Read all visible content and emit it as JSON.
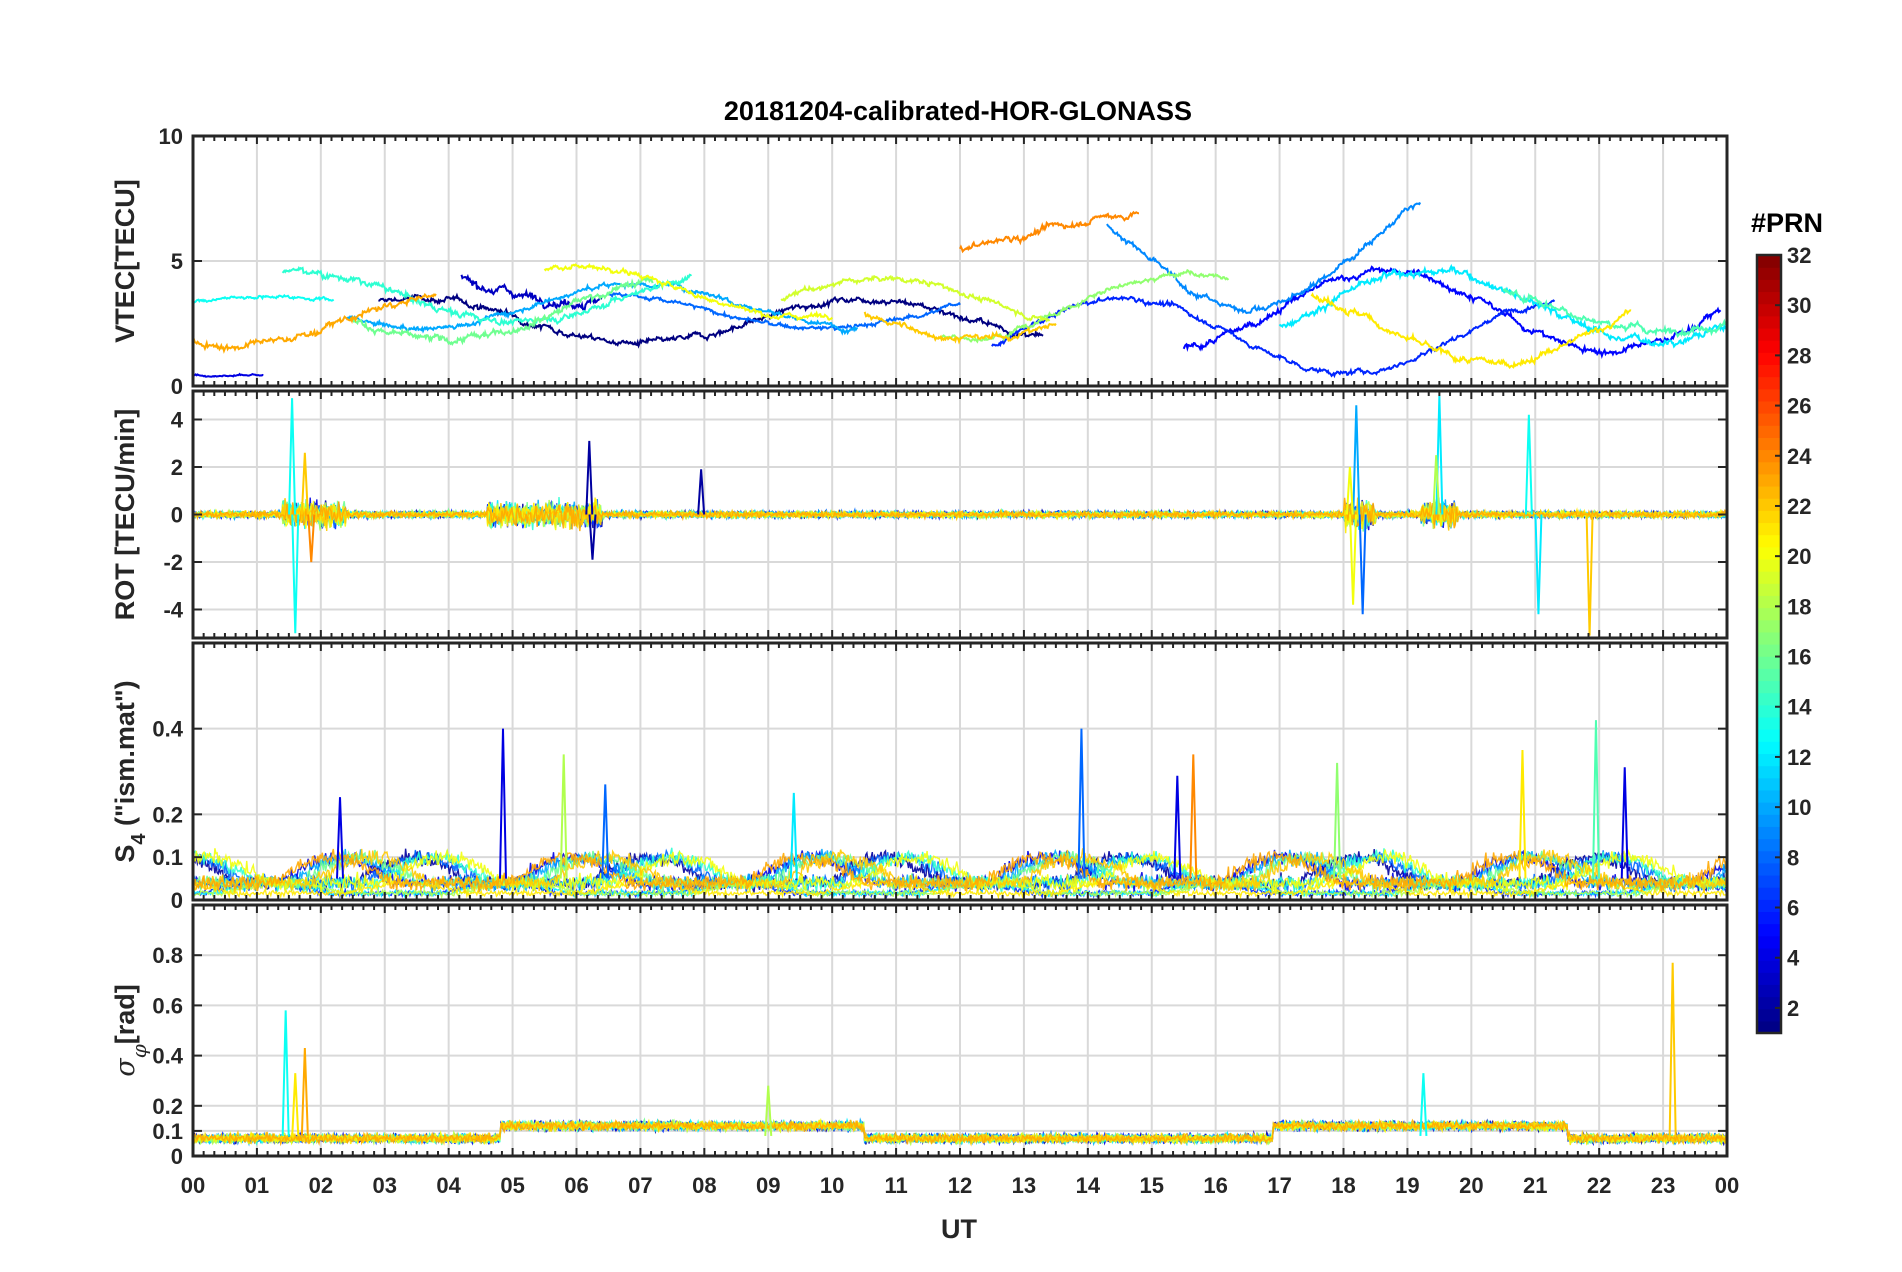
{
  "chart_data": {
    "title": "20181204-calibrated-HOR-GLONASS",
    "xlabel": "UT",
    "x_range": [
      0,
      24
    ],
    "x_tick_labels": [
      "00",
      "01",
      "02",
      "03",
      "04",
      "05",
      "06",
      "07",
      "08",
      "09",
      "10",
      "11",
      "12",
      "13",
      "14",
      "15",
      "16",
      "17",
      "18",
      "19",
      "20",
      "21",
      "22",
      "23",
      "00"
    ],
    "colorbar": {
      "title": "#PRN",
      "range": [
        1,
        32
      ],
      "tick_labels": [
        "2",
        "4",
        "6",
        "8",
        "10",
        "12",
        "14",
        "16",
        "18",
        "20",
        "22",
        "24",
        "26",
        "28",
        "30",
        "32"
      ],
      "colormap": "jet"
    },
    "panels": [
      {
        "id": "vtec",
        "type": "line",
        "ylabel": "VTEC[TECU]",
        "ylim": [
          0,
          10
        ],
        "y_ticks": [
          0,
          5,
          10
        ],
        "y_tick_labels": [
          "0",
          "5",
          "10"
        ],
        "series": [
          {
            "prn": 1,
            "start": 2.9,
            "end": 13.3,
            "base": 2.6,
            "amp": 0.9,
            "noise": 0.35
          },
          {
            "prn": 3,
            "start": 4.2,
            "end": 6.4,
            "base": 4.2,
            "amp": 0.8,
            "noise": 0.5
          },
          {
            "prn": 4,
            "start": 0.0,
            "end": 1.1,
            "base": 0.6,
            "amp": 0.2,
            "noise": 0.12
          },
          {
            "prn": 5,
            "start": 15.5,
            "end": 23.9,
            "base": 3.0,
            "amp": 1.6,
            "noise": 0.4
          },
          {
            "prn": 6,
            "start": 12.5,
            "end": 21.3,
            "base": 2.0,
            "amp": 1.5,
            "noise": 0.3
          },
          {
            "prn": 8,
            "start": 6.5,
            "end": 12.0,
            "base": 3.0,
            "amp": 0.7,
            "noise": 0.25
          },
          {
            "prn": 9,
            "start": 14.3,
            "end": 19.2,
            "base": 5.5,
            "amp": 2.4,
            "noise": 0.35
          },
          {
            "prn": 10,
            "start": 2.4,
            "end": 10.4,
            "base": 3.2,
            "amp": 0.9,
            "noise": 0.3
          },
          {
            "prn": 12,
            "start": 17.0,
            "end": 24.0,
            "base": 3.2,
            "amp": 1.4,
            "noise": 0.45
          },
          {
            "prn": 13,
            "start": 0.0,
            "end": 2.2,
            "base": 3.2,
            "amp": 0.4,
            "noise": 0.2
          },
          {
            "prn": 14,
            "start": 1.4,
            "end": 7.8,
            "base": 3.6,
            "amp": 1.0,
            "noise": 0.4
          },
          {
            "prn": 15,
            "start": 20.5,
            "end": 24.0,
            "base": 3.2,
            "amp": 1.0,
            "noise": 0.4
          },
          {
            "prn": 16,
            "start": 2.5,
            "end": 7.2,
            "base": 3.0,
            "amp": 1.2,
            "noise": 0.4
          },
          {
            "prn": 17,
            "start": 11.7,
            "end": 16.2,
            "base": 3.2,
            "amp": 1.3,
            "noise": 0.3
          },
          {
            "prn": 19,
            "start": 9.2,
            "end": 13.4,
            "base": 3.3,
            "amp": 1.0,
            "noise": 0.3
          },
          {
            "prn": 20,
            "start": 5.5,
            "end": 10.0,
            "base": 3.8,
            "amp": 1.0,
            "noise": 0.3
          },
          {
            "prn": 21,
            "start": 17.5,
            "end": 22.5,
            "base": 2.4,
            "amp": 1.5,
            "noise": 0.4
          },
          {
            "prn": 22,
            "start": 10.5,
            "end": 13.5,
            "base": 2.9,
            "amp": 1.0,
            "noise": 0.35
          },
          {
            "prn": 23,
            "start": 0.0,
            "end": 3.8,
            "base": 2.6,
            "amp": 1.0,
            "noise": 0.4
          },
          {
            "prn": 24,
            "start": 12.0,
            "end": 14.8,
            "base": 6.2,
            "amp": 0.7,
            "noise": 0.4
          }
        ]
      },
      {
        "id": "rot",
        "type": "line",
        "ylabel": "ROT [TECU/min]",
        "ylim": [
          -5.2,
          5.2
        ],
        "y_ticks": [
          -4,
          -2,
          0,
          2,
          4
        ],
        "y_tick_labels": [
          "-4",
          "-2",
          "0",
          "2",
          "4"
        ],
        "spikes": [
          {
            "t": 1.55,
            "v": 4.9,
            "prn": 13
          },
          {
            "t": 1.6,
            "v": -5.0,
            "prn": 13
          },
          {
            "t": 1.75,
            "v": 2.6,
            "prn": 22
          },
          {
            "t": 1.85,
            "v": -2.0,
            "prn": 24
          },
          {
            "t": 6.2,
            "v": 3.1,
            "prn": 2
          },
          {
            "t": 6.25,
            "v": -1.9,
            "prn": 2
          },
          {
            "t": 7.95,
            "v": 1.9,
            "prn": 2
          },
          {
            "t": 18.2,
            "v": 4.6,
            "prn": 10
          },
          {
            "t": 18.3,
            "v": -4.2,
            "prn": 8
          },
          {
            "t": 18.1,
            "v": 2.0,
            "prn": 20
          },
          {
            "t": 18.15,
            "v": -3.8,
            "prn": 20
          },
          {
            "t": 19.5,
            "v": 5.0,
            "prn": 12
          },
          {
            "t": 19.45,
            "v": 2.5,
            "prn": 18
          },
          {
            "t": 20.9,
            "v": 4.2,
            "prn": 13
          },
          {
            "t": 21.05,
            "v": -4.2,
            "prn": 12
          },
          {
            "t": 21.85,
            "v": -5.1,
            "prn": 22
          }
        ]
      },
      {
        "id": "s4",
        "type": "line",
        "ylabel": "S4 (\"ism.mat\")",
        "ylim": [
          0,
          0.6
        ],
        "y_ticks": [
          0,
          0.1,
          0.2,
          0.4
        ],
        "y_tick_labels": [
          "0",
          "0.1",
          "0.2",
          "0.4"
        ],
        "spikes": [
          {
            "t": 4.85,
            "v": 0.4,
            "prn": 4
          },
          {
            "t": 5.8,
            "v": 0.34,
            "prn": 18
          },
          {
            "t": 6.45,
            "v": 0.27,
            "prn": 8
          },
          {
            "t": 13.9,
            "v": 0.4,
            "prn": 8
          },
          {
            "t": 15.65,
            "v": 0.34,
            "prn": 24
          },
          {
            "t": 15.4,
            "v": 0.29,
            "prn": 4
          },
          {
            "t": 17.9,
            "v": 0.32,
            "prn": 17
          },
          {
            "t": 20.8,
            "v": 0.35,
            "prn": 21
          },
          {
            "t": 21.95,
            "v": 0.42,
            "prn": 15
          },
          {
            "t": 22.4,
            "v": 0.31,
            "prn": 4
          },
          {
            "t": 2.3,
            "v": 0.24,
            "prn": 4
          },
          {
            "t": 9.4,
            "v": 0.25,
            "prn": 12
          }
        ]
      },
      {
        "id": "sigma",
        "type": "line",
        "ylabel": "σφ[rad]",
        "ylim": [
          0,
          1.0
        ],
        "y_ticks": [
          0,
          0.1,
          0.2,
          0.4,
          0.6,
          0.8
        ],
        "y_tick_labels": [
          "0",
          "0.1",
          "0.2",
          "0.4",
          "0.6",
          "0.8"
        ],
        "spikes": [
          {
            "t": 1.45,
            "v": 0.58,
            "prn": 13
          },
          {
            "t": 1.75,
            "v": 0.43,
            "prn": 23
          },
          {
            "t": 23.15,
            "v": 0.77,
            "prn": 22
          },
          {
            "t": 1.6,
            "v": 0.33,
            "prn": 21
          },
          {
            "t": 19.25,
            "v": 0.33,
            "prn": 13
          },
          {
            "t": 9.0,
            "v": 0.28,
            "prn": 18
          }
        ]
      }
    ]
  }
}
